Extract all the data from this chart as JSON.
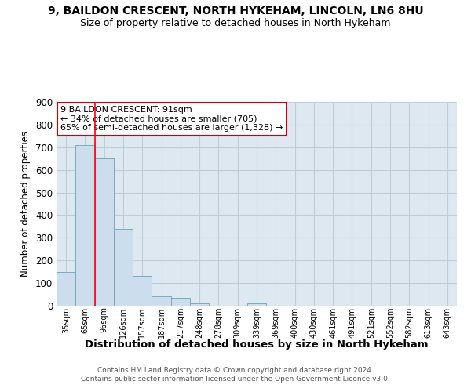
{
  "title1": "9, BAILDON CRESCENT, NORTH HYKEHAM, LINCOLN, LN6 8HU",
  "title2": "Size of property relative to detached houses in North Hykeham",
  "xlabel": "Distribution of detached houses by size in North Hykeham",
  "ylabel": "Number of detached properties",
  "categories": [
    "35sqm",
    "65sqm",
    "96sqm",
    "126sqm",
    "157sqm",
    "187sqm",
    "217sqm",
    "248sqm",
    "278sqm",
    "309sqm",
    "339sqm",
    "369sqm",
    "400sqm",
    "430sqm",
    "461sqm",
    "491sqm",
    "521sqm",
    "552sqm",
    "582sqm",
    "613sqm",
    "643sqm"
  ],
  "values": [
    150,
    710,
    650,
    340,
    130,
    40,
    35,
    10,
    0,
    0,
    10,
    0,
    0,
    0,
    0,
    0,
    0,
    0,
    0,
    0,
    0
  ],
  "bar_color": "#ccdded",
  "bar_edge_color": "#7aaabe",
  "red_line_index": 2,
  "annotation_text": "9 BAILDON CRESCENT: 91sqm\n← 34% of detached houses are smaller (705)\n65% of semi-detached houses are larger (1,328) →",
  "annotation_box_color": "#ffffff",
  "annotation_box_edge": "#cc0000",
  "footer": "Contains HM Land Registry data © Crown copyright and database right 2024.\nContains public sector information licensed under the Open Government Licence v3.0.",
  "ylim": [
    0,
    900
  ],
  "yticks": [
    0,
    100,
    200,
    300,
    400,
    500,
    600,
    700,
    800,
    900
  ],
  "background_color": "#ffffff",
  "plot_bg_color": "#dde8f0",
  "grid_color": "#c0cdd8"
}
